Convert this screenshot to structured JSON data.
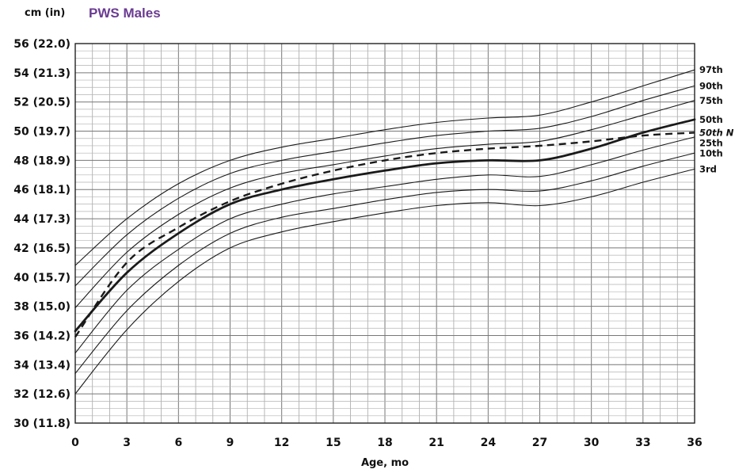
{
  "title": "PWS Males",
  "title_color": "#6a3b92",
  "unit_label": "cm (in)",
  "chart_data": {
    "type": "line",
    "title": "PWS Males",
    "xlabel": "Age, mo",
    "ylabel": "cm (in)",
    "xlim": [
      0,
      36
    ],
    "ylim": [
      30,
      56
    ],
    "grid": true,
    "x_ticks": [
      0,
      3,
      6,
      9,
      12,
      15,
      18,
      21,
      24,
      27,
      30,
      33,
      36
    ],
    "x_tick_labels": [
      "0",
      "3",
      "6",
      "9",
      "12",
      "15",
      "18",
      "21",
      "24",
      "27",
      "30",
      "33",
      "36"
    ],
    "y_ticks": [
      30,
      32,
      34,
      36,
      38,
      40,
      42,
      44,
      46,
      48,
      50,
      52,
      54,
      56
    ],
    "y_tick_labels": [
      "30 (11.8)",
      "32 (12.6)",
      "34 (13.4)",
      "36 (14.2)",
      "38 (15.0)",
      "40 (15.7)",
      "42 (16.5)",
      "44 (17.3)",
      "46 (18.1)",
      "48 (18.9)",
      "50 (19.7)",
      "52 (20.5)",
      "54 (21.3)",
      "56 (22.0)"
    ],
    "x": [
      0,
      3,
      6,
      9,
      12,
      15,
      18,
      21,
      24,
      27,
      30,
      33,
      36
    ],
    "series": [
      {
        "name": "97th",
        "style": "thin",
        "values": [
          40.8,
          44.0,
          46.4,
          48.0,
          48.9,
          49.5,
          50.1,
          50.6,
          50.9,
          51.1,
          52.0,
          53.1,
          54.2
        ]
      },
      {
        "name": "90th",
        "style": "thin",
        "values": [
          39.4,
          42.9,
          45.4,
          47.1,
          48.0,
          48.6,
          49.2,
          49.7,
          50.0,
          50.2,
          51.0,
          52.1,
          53.1
        ]
      },
      {
        "name": "75th",
        "style": "thin",
        "values": [
          37.9,
          41.7,
          44.3,
          46.1,
          47.1,
          47.7,
          48.3,
          48.8,
          49.1,
          49.3,
          50.1,
          51.1,
          52.1
        ]
      },
      {
        "name": "50th",
        "style": "bold",
        "values": [
          36.3,
          40.3,
          43.0,
          45.0,
          46.0,
          46.7,
          47.3,
          47.8,
          48.0,
          48.0,
          48.8,
          49.9,
          50.8
        ]
      },
      {
        "name": "50th N",
        "style": "dashed",
        "values": [
          35.9,
          41.0,
          43.4,
          45.2,
          46.4,
          47.3,
          48.0,
          48.5,
          48.8,
          49.0,
          49.3,
          49.7,
          49.9
        ]
      },
      {
        "name": "25th",
        "style": "thin",
        "values": [
          34.8,
          39.1,
          41.9,
          44.0,
          45.0,
          45.7,
          46.2,
          46.7,
          47.0,
          46.9,
          47.7,
          48.7,
          49.6
        ]
      },
      {
        "name": "10th",
        "style": "thin",
        "values": [
          33.4,
          37.7,
          40.8,
          43.0,
          44.1,
          44.7,
          45.3,
          45.8,
          46.0,
          45.9,
          46.6,
          47.6,
          48.5
        ]
      },
      {
        "name": "3rd",
        "style": "thin",
        "values": [
          32.0,
          36.4,
          39.7,
          42.0,
          43.1,
          43.8,
          44.4,
          44.9,
          45.1,
          44.9,
          45.5,
          46.5,
          47.4
        ]
      }
    ]
  }
}
